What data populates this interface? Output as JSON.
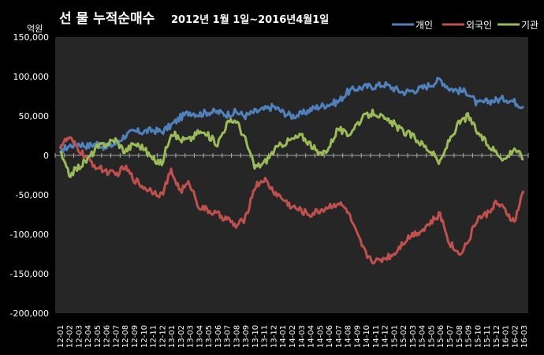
{
  "chart_data": {
    "type": "line",
    "title": "선 물 누적순매수",
    "subtitle": "2012년 1월 1일~2016년4월1일",
    "unit_label": "억원",
    "ylim": [
      -200000,
      150000
    ],
    "y_ticks": [
      "150,000",
      "100,000",
      "50,000",
      "0",
      "-50,000",
      "-100,000",
      "-150,000",
      "-200,000"
    ],
    "y_tick_values": [
      150000,
      100000,
      50000,
      0,
      -50000,
      -100000,
      -150000,
      -200000
    ],
    "categories": [
      "12-01",
      "12-02",
      "12-03",
      "12-04",
      "12-05",
      "12-06",
      "12-07",
      "12-08",
      "12-09",
      "12-10",
      "12-11",
      "12-12",
      "13-01",
      "13-02",
      "13-03",
      "13-04",
      "13-05",
      "13-06",
      "13-07",
      "13-08",
      "13-09",
      "13-10",
      "13-11",
      "13-12",
      "14-01",
      "14-02",
      "14-03",
      "14-04",
      "14-05",
      "14-06",
      "14-07",
      "14-08",
      "14-09",
      "14-10",
      "14-11",
      "14-12",
      "15-01",
      "15-02",
      "15-03",
      "15-04",
      "15-05",
      "15-06",
      "15-07",
      "15-08",
      "15-09",
      "15-10",
      "15-11",
      "15-12",
      "16-01",
      "16-02",
      "16-03"
    ],
    "grid": false,
    "legend_position": "top-right",
    "series": [
      {
        "name": "개인",
        "color": "#4f81bd",
        "values": [
          5000,
          12000,
          15000,
          12000,
          15000,
          10000,
          15000,
          25000,
          30000,
          30000,
          32000,
          30000,
          38000,
          48000,
          55000,
          52000,
          55000,
          55000,
          52000,
          55000,
          50000,
          55000,
          58000,
          62000,
          55000,
          50000,
          52000,
          58000,
          62000,
          65000,
          68000,
          80000,
          85000,
          87000,
          88000,
          90000,
          85000,
          80000,
          82000,
          85000,
          90000,
          96000,
          85000,
          82000,
          80000,
          65000,
          68000,
          70000,
          72000,
          68000,
          62000
        ]
      },
      {
        "name": "외국인",
        "color": "#c0504d",
        "values": [
          12000,
          22000,
          8000,
          -5000,
          -15000,
          -20000,
          -25000,
          -15000,
          -30000,
          -40000,
          -45000,
          -50000,
          -20000,
          -45000,
          -35000,
          -65000,
          -70000,
          -75000,
          -80000,
          -90000,
          -80000,
          -40000,
          -30000,
          -45000,
          -55000,
          -65000,
          -70000,
          -75000,
          -70000,
          -65000,
          -60000,
          -70000,
          -100000,
          -125000,
          -135000,
          -130000,
          -125000,
          -110000,
          -100000,
          -95000,
          -85000,
          -75000,
          -110000,
          -125000,
          -110000,
          -80000,
          -75000,
          -60000,
          -70000,
          -85000,
          -45000
        ]
      },
      {
        "name": "기관",
        "color": "#9bbb59",
        "values": [
          5000,
          -25000,
          -15000,
          -5000,
          10000,
          15000,
          20000,
          5000,
          15000,
          10000,
          -5000,
          -10000,
          30000,
          20000,
          20000,
          30000,
          25000,
          15000,
          40000,
          45000,
          20000,
          -15000,
          -10000,
          5000,
          15000,
          20000,
          25000,
          15000,
          0,
          10000,
          35000,
          25000,
          40000,
          50000,
          55000,
          45000,
          40000,
          30000,
          25000,
          15000,
          5000,
          -10000,
          20000,
          40000,
          50000,
          30000,
          15000,
          5000,
          -5000,
          10000,
          -5000
        ]
      }
    ]
  }
}
